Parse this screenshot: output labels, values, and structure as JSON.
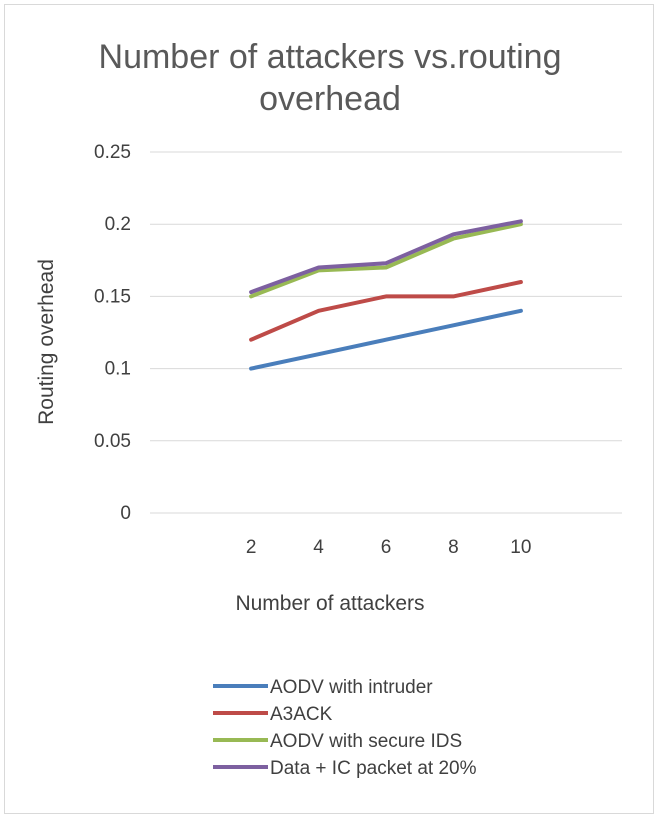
{
  "chart_data": {
    "type": "line",
    "title_lines": [
      "Number of attackers vs.routing",
      "overhead"
    ],
    "xlabel": "Number of attackers",
    "ylabel": "Routing overhead",
    "categories": [
      "2",
      "4",
      "6",
      "8",
      "10"
    ],
    "ylim": [
      0,
      0.25
    ],
    "yticks": [
      "0",
      "0.05",
      "0.1",
      "0.15",
      "0.2",
      "0.25"
    ],
    "grid": true,
    "legend_position": "bottom",
    "series": [
      {
        "name": "AODV with intruder",
        "color": "#4a7ebb",
        "values": [
          0.1,
          0.11,
          0.12,
          0.13,
          0.14
        ]
      },
      {
        "name": "A3ACK",
        "color": "#be4b48",
        "values": [
          0.12,
          0.14,
          0.15,
          0.15,
          0.16
        ]
      },
      {
        "name": "AODV with secure IDS",
        "color": "#98b954",
        "values": [
          0.15,
          0.168,
          0.17,
          0.19,
          0.2
        ]
      },
      {
        "name": "Data + IC packet at 20%",
        "color": "#7d60a0",
        "values": [
          0.153,
          0.17,
          0.173,
          0.193,
          0.202
        ]
      }
    ]
  }
}
